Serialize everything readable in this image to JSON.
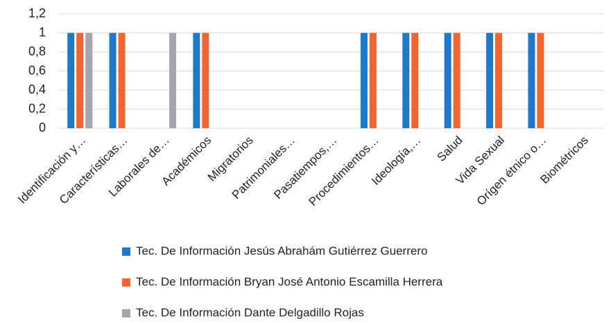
{
  "chart_data": {
    "type": "bar",
    "categories": [
      "Identificación y…",
      "Características…",
      "Laborales de…",
      "Académicos",
      "Migratorios",
      "Patrimoniales…",
      "Pasatiempos,…",
      "Procedimientos…",
      "Ideología,…",
      "Salud",
      "Vida Sexual",
      "Orígen étnico o…",
      "Biométricos"
    ],
    "series": [
      {
        "name": "Tec. De Información Jesús Abrahám  Gutiérrez Guerrero",
        "color": "#1f78c8",
        "values": [
          1,
          1,
          0,
          1,
          0,
          0,
          0,
          1,
          1,
          1,
          1,
          1,
          0
        ]
      },
      {
        "name": "Tec. De Información Bryan José Antonio Escamilla Herrera",
        "color": "#f26430",
        "values": [
          1,
          1,
          0,
          1,
          0,
          0,
          0,
          1,
          1,
          1,
          1,
          1,
          0
        ]
      },
      {
        "name": "Tec. De Información Dante Delgadillo Rojas",
        "color": "#a4a6ad",
        "values": [
          1,
          0,
          1,
          0,
          0,
          0,
          0,
          0,
          0,
          0,
          0,
          0,
          0
        ]
      }
    ],
    "ylim": [
      0,
      1.2
    ],
    "yticks": [
      0,
      {
        "value": 0.2,
        "label": "0,2"
      },
      {
        "value": 0.4,
        "label": "0,4"
      },
      {
        "value": 0.6,
        "label": "0,6"
      },
      {
        "value": 0.8,
        "label": "0,8"
      },
      1,
      {
        "value": 1.2,
        "label": "1,2"
      }
    ],
    "grid": true,
    "legend": "bottom"
  }
}
